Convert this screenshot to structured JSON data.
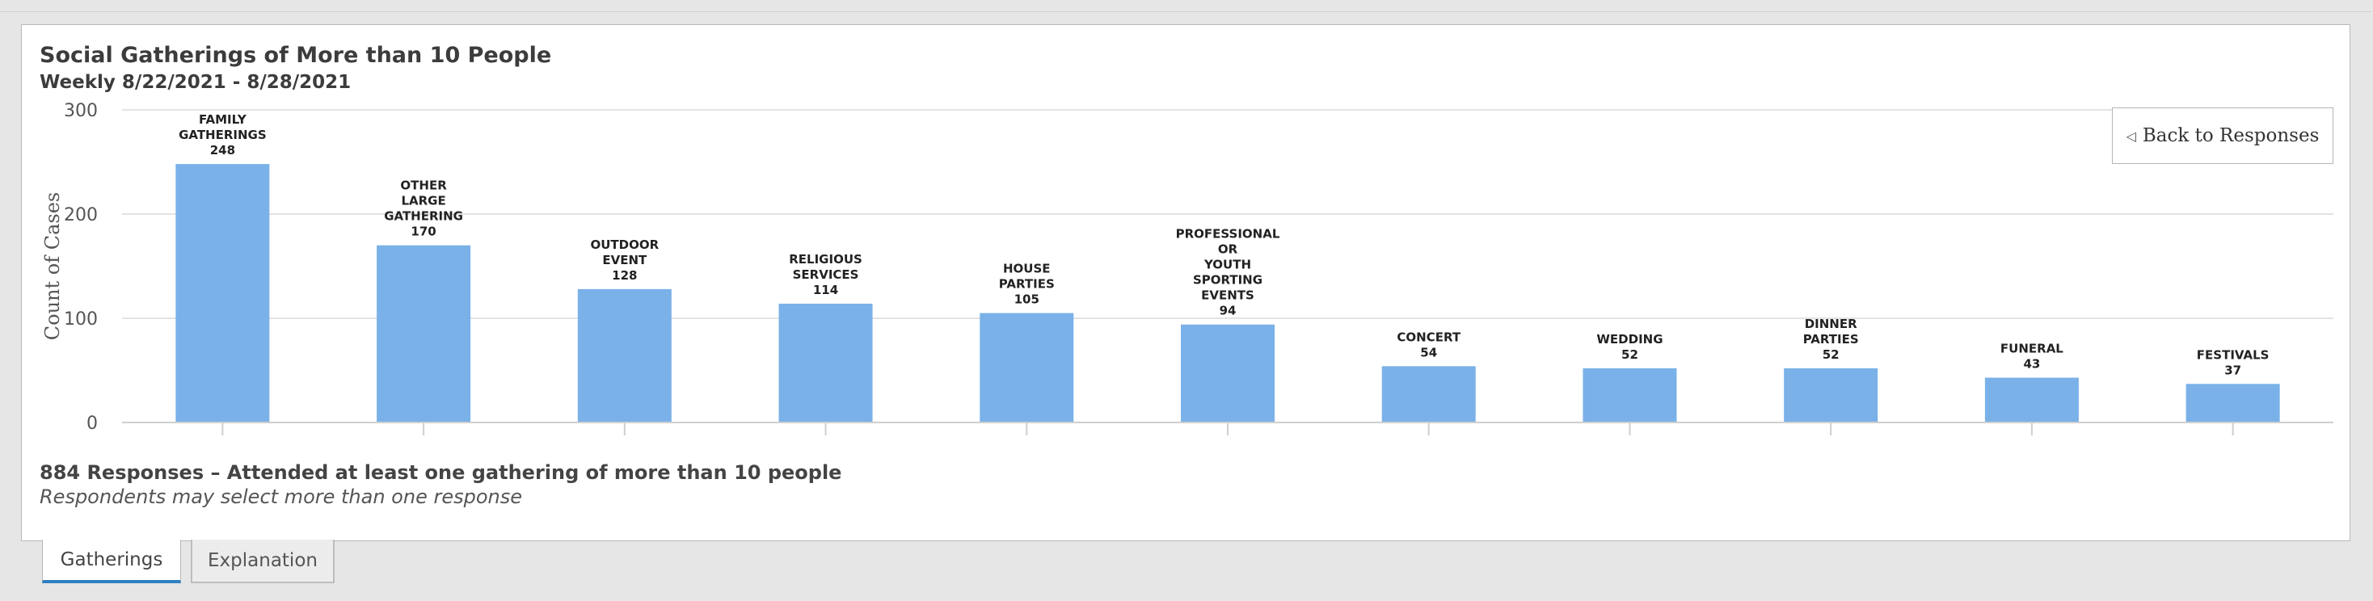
{
  "panel": {
    "title": "Social Gatherings of More than 10 People",
    "subtitle": "Weekly 8/22/2021 - 8/28/2021",
    "back_button": "Back to Responses",
    "back_icon": "triangle-left-icon",
    "footer_summary": "884 Responses – Attended at least one gathering of more than 10 people",
    "footer_note": "Respondents may select more than one response"
  },
  "tabs": [
    {
      "label": "Gatherings",
      "active": true
    },
    {
      "label": "Explanation",
      "active": false
    }
  ],
  "colors": {
    "bar": "#7ab1e8",
    "grid": "#e3e3e3",
    "axis_text": "#555555",
    "tab_accent": "#2f7fc1"
  },
  "chart_data": {
    "type": "bar",
    "title": "Social Gatherings of More than 10 People",
    "subtitle": "Weekly 8/22/2021 - 8/28/2021",
    "xlabel": "",
    "ylabel": "Count of Cases",
    "ylim": [
      0,
      300
    ],
    "yticks": [
      0,
      100,
      200,
      300
    ],
    "grid": true,
    "legend": "none",
    "categories": [
      [
        "FAMILY",
        "GATHERINGS"
      ],
      [
        "OTHER",
        "LARGE",
        "GATHERING"
      ],
      [
        "OUTDOOR",
        "EVENT"
      ],
      [
        "RELIGIOUS",
        "SERVICES"
      ],
      [
        "HOUSE",
        "PARTIES"
      ],
      [
        "PROFESSIONAL",
        "OR",
        "YOUTH",
        "SPORTING",
        "EVENTS"
      ],
      [
        "CONCERT"
      ],
      [
        "WEDDING"
      ],
      [
        "DINNER",
        "PARTIES"
      ],
      [
        "FUNERAL"
      ],
      [
        "FESTIVALS"
      ]
    ],
    "values": [
      248,
      170,
      128,
      114,
      105,
      94,
      54,
      52,
      52,
      43,
      37
    ]
  }
}
